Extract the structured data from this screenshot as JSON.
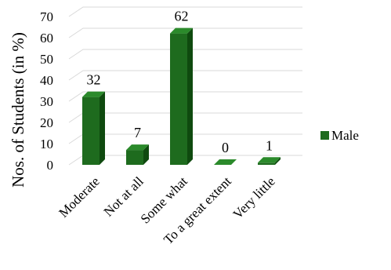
{
  "chart_data": {
    "type": "bar",
    "categories": [
      "Moderate",
      "Not at all",
      "Some what",
      "To a great extent",
      "Very little"
    ],
    "series": [
      {
        "name": "Male",
        "values": [
          32,
          7,
          62,
          0,
          1
        ],
        "color": "#1e6b1e"
      }
    ],
    "ylabel": "Nos. of Students (in %)",
    "ylim": [
      0,
      70
    ],
    "yticks": [
      0,
      10,
      20,
      30,
      40,
      50,
      60,
      70
    ],
    "data_labels": [
      "32",
      "7",
      "62",
      "0",
      "1"
    ],
    "grid": true,
    "legend": "right",
    "style": "3d-bar"
  }
}
